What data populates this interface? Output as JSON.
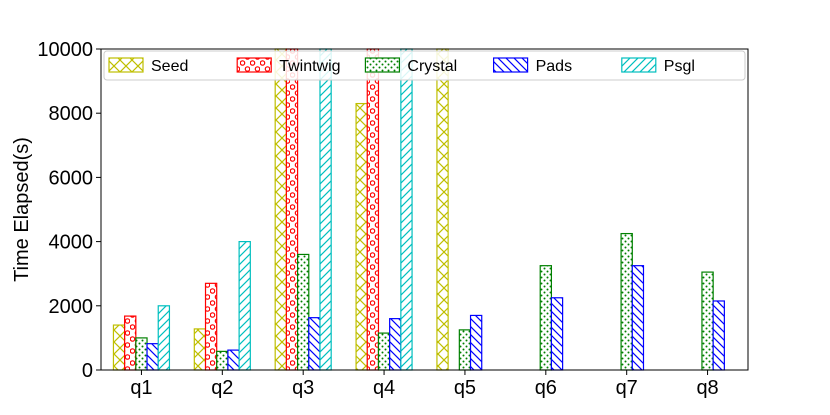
{
  "chart_data": {
    "type": "bar",
    "title": "",
    "xlabel": "",
    "ylabel": "Time Elapsed(s)",
    "ylim": [
      0,
      10000
    ],
    "yticks": [
      "0",
      "2000",
      "4000",
      "6000",
      "8000",
      "10000"
    ],
    "categories": [
      "q1",
      "q2",
      "q3",
      "q4",
      "q5",
      "q6",
      "q7",
      "q8"
    ],
    "grid": false,
    "legend_position": "top",
    "series": [
      {
        "name": "Seed",
        "color": "#bfbf00",
        "pattern": "crosshatch",
        "values": [
          1400,
          1280,
          10000,
          8300,
          10000,
          null,
          null,
          null
        ]
      },
      {
        "name": "Twintwig",
        "color": "#ff0000",
        "pattern": "circles",
        "values": [
          1680,
          2700,
          10000,
          10000,
          null,
          null,
          null,
          null
        ]
      },
      {
        "name": "Crystal",
        "color": "#008000",
        "pattern": "dots",
        "values": [
          1000,
          580,
          3600,
          1150,
          1250,
          3250,
          4250,
          3050
        ]
      },
      {
        "name": "Pads",
        "color": "#0000ff",
        "pattern": "backslash",
        "values": [
          820,
          620,
          1630,
          1600,
          1700,
          2250,
          3250,
          2150
        ]
      },
      {
        "name": "Psgl",
        "color": "#00bfbf",
        "pattern": "slash",
        "values": [
          2000,
          4000,
          10000,
          10000,
          null,
          null,
          null,
          null
        ]
      }
    ]
  }
}
